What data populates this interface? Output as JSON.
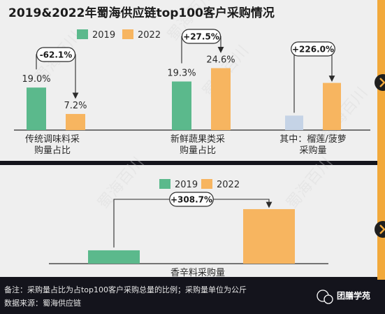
{
  "title": "2019&2022年蜀海供应链top100客户采购情况",
  "colors": {
    "y2019": "#5bb98c",
    "y2022": "#f7b560",
    "y2019_alt": "#c5d3e6",
    "accent": "#f2a93b",
    "panel": "#efefef",
    "dark": "#1f1f1f"
  },
  "legend": {
    "y2019": "2019",
    "y2022": "2022"
  },
  "chart_data": [
    {
      "type": "bar",
      "category": "传统调味料采购量占比",
      "label_lines": [
        "传统调味料采",
        "购量占比"
      ],
      "values": {
        "2019": 19.0,
        "2022": 7.2
      },
      "value_labels": {
        "2019": "19.0%",
        "2022": "7.2%"
      },
      "change": "-62.1%",
      "ylim": [
        0,
        25
      ]
    },
    {
      "type": "bar",
      "category": "新鲜蔬果类采购量占比",
      "label_lines": [
        "新鲜蔬果类采",
        "购量占比"
      ],
      "values": {
        "2019": 19.3,
        "2022": 24.6
      },
      "value_labels": {
        "2019": "19.3%",
        "2022": "24.6%"
      },
      "change": "+27.5%",
      "ylim": [
        0,
        25
      ]
    },
    {
      "type": "bar",
      "category": "其中：榴莲/菠萝采购量",
      "label_lines": [
        "其中：榴莲/菠萝",
        "采购量"
      ],
      "values": {
        "2019": 1,
        "2022": 3.26
      },
      "change": "+226.0%",
      "ylim": [
        0,
        4.35
      ]
    },
    {
      "type": "bar",
      "category": "香辛料采购量",
      "label_lines": [
        "香辛料采购量"
      ],
      "values": {
        "2019": 1,
        "2022": 4.087
      },
      "change": "+308.7%",
      "ylim": [
        0,
        4.3
      ]
    }
  ],
  "watermark": "蜀海百川",
  "footer": {
    "note": "备注：采购量占比为占top100客户采购总量的比例；采购量单位为公斤",
    "source": "数据来源：蜀海供应链",
    "brand": "团膳学苑"
  }
}
